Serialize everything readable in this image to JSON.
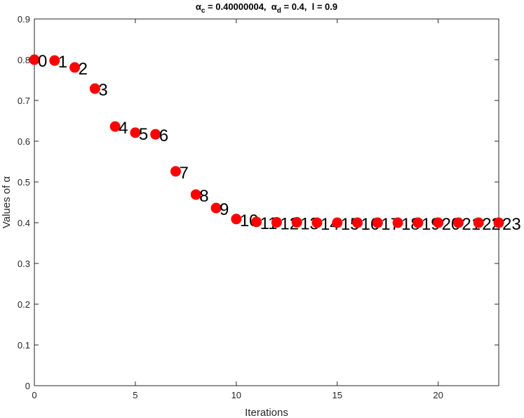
{
  "chart_data": {
    "type": "scatter",
    "title": {
      "symbol_1": "α",
      "sub_1": "c",
      "text_1": " = 0.40000004,  ",
      "symbol_2": "α",
      "sub_2": "d",
      "text_2": " = 0.4,  l = 0.9"
    },
    "x_label": "Iterations",
    "y_label": "Values of α",
    "x": [
      0,
      1,
      2,
      3,
      4,
      5,
      6,
      7,
      8,
      9,
      10,
      11,
      12,
      13,
      14,
      15,
      16,
      17,
      18,
      19,
      20,
      21,
      22,
      23
    ],
    "series": [
      {
        "color": "#ff0000",
        "values": [
          0.8,
          0.798,
          0.781,
          0.729,
          0.636,
          0.621,
          0.617,
          0.526,
          0.469,
          0.436,
          0.409,
          0.402,
          0.401,
          0.401,
          0.4,
          0.4,
          0.4,
          0.4,
          0.4,
          0.4,
          0.4,
          0.4,
          0.4,
          0.4
        ]
      }
    ],
    "xlim": [
      0,
      23
    ],
    "ylim": [
      0,
      0.9
    ],
    "xticks": [
      0,
      5,
      10,
      15,
      20
    ],
    "yticks": [
      0,
      0.1,
      0.2,
      0.3,
      0.4,
      0.5,
      0.6,
      0.7,
      0.8,
      0.9
    ]
  }
}
